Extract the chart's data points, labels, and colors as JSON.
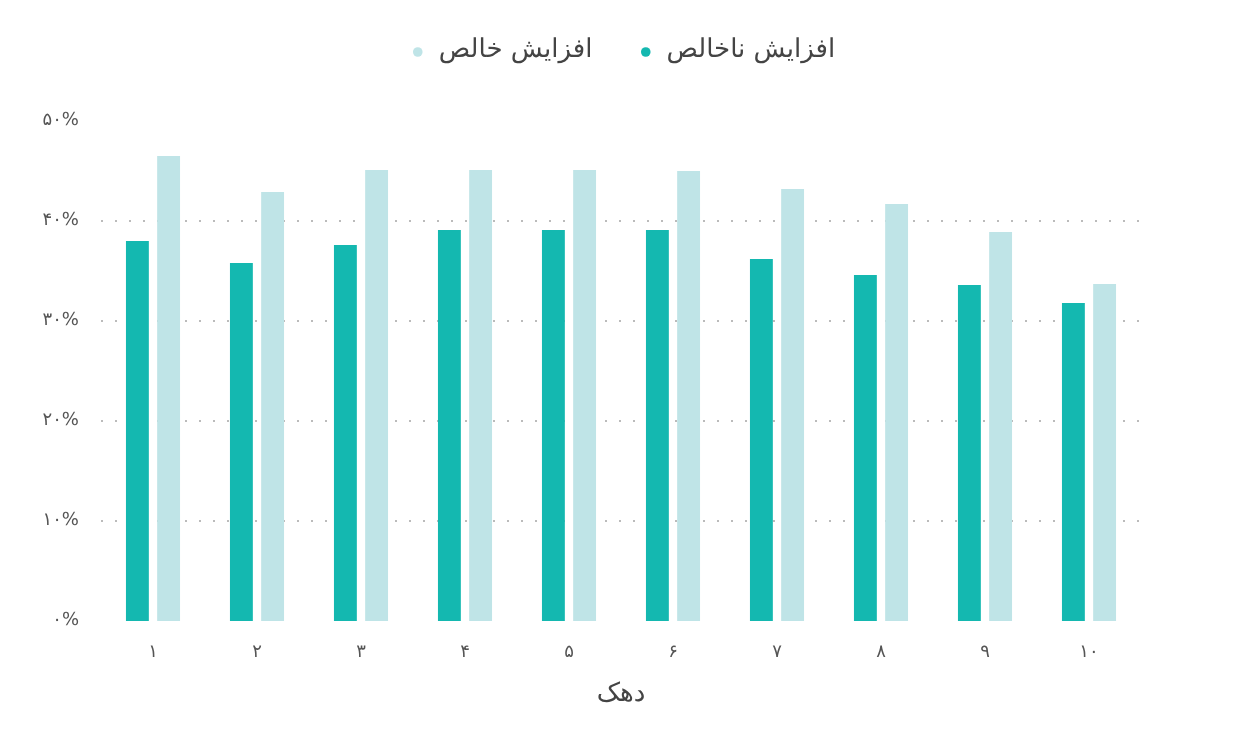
{
  "chart_data": {
    "type": "bar",
    "xlabel": "دهک",
    "categories": [
      "۱",
      "۲",
      "۳",
      "۴",
      "۵",
      "۶",
      "۷",
      "۸",
      "۹",
      "۱۰"
    ],
    "series": [
      {
        "name": "افزایش ناخالص",
        "color": "#14b8b0",
        "values": [
          38.0,
          35.8,
          37.6,
          39.1,
          39.1,
          39.1,
          36.2,
          34.6,
          33.6,
          31.8
        ]
      },
      {
        "name": "افزایش خالص",
        "color": "#bfe4e7",
        "values": [
          46.5,
          42.9,
          45.1,
          45.1,
          45.1,
          45.0,
          43.2,
          41.7,
          38.9,
          33.7
        ]
      }
    ],
    "ylim": [
      0,
      50
    ],
    "yticks": [
      {
        "value": 0,
        "label": "۰%"
      },
      {
        "value": 10,
        "label": "۱۰%"
      },
      {
        "value": 20,
        "label": "۲۰%"
      },
      {
        "value": 30,
        "label": "۳۰%"
      },
      {
        "value": 40,
        "label": "۴۰%"
      },
      {
        "value": 50,
        "label": "۵۰%"
      }
    ],
    "grid": "y",
    "legend": "top"
  }
}
